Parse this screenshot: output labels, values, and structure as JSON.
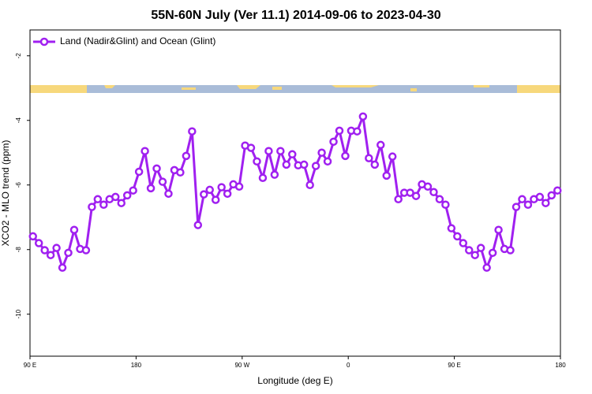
{
  "chart_data": {
    "type": "line",
    "title": "55N-60N July (Ver 11.1)   2014-09-06 to 2023-04-30",
    "x_label": "Longitude (deg E)",
    "y_label": "XCO2 - MLO trend (ppm)",
    "xlim": [
      90,
      540
    ],
    "xticks": [
      {
        "value": 90,
        "label": "90 E"
      },
      180,
      {
        "value": 270,
        "label": "90 W"
      },
      {
        "value": 360,
        "label": "0"
      },
      {
        "value": 450,
        "label": "90 E"
      },
      {
        "value": 540,
        "label": "180"
      }
    ],
    "ylim": [
      -11.3,
      -1.2
    ],
    "yticks": [
      -10,
      -8,
      -6,
      -4,
      -2
    ],
    "legend": "top-left",
    "x": [
      92.5,
      97.5,
      102.5,
      107.5,
      112.5,
      117.5,
      122.5,
      127.5,
      132.5,
      137.5,
      142.5,
      147.5,
      152.5,
      157.5,
      162.5,
      167.5,
      172.5,
      177.5,
      182.5,
      187.5,
      192.5,
      197.5,
      202.5,
      207.5,
      212.5,
      217.5,
      222.5,
      227.5,
      232.5,
      237.5,
      242.5,
      247.5,
      252.5,
      257.5,
      262.5,
      267.5,
      272.5,
      277.5,
      282.5,
      287.5,
      292.5,
      297.5,
      302.5,
      307.5,
      312.5,
      317.5,
      322.5,
      327.5,
      332.5,
      337.5,
      342.5,
      347.5,
      352.5,
      357.5,
      362.5,
      367.5,
      372.5,
      377.5,
      382.5,
      387.5,
      392.5,
      397.5,
      402.5,
      407.5,
      412.5,
      417.5,
      422.5,
      427.5,
      432.5,
      437.5,
      442.5,
      447.5,
      452.5,
      457.5,
      462.5,
      467.5,
      472.5,
      477.5,
      482.5,
      487.5,
      492.5,
      497.5,
      502.5,
      507.5,
      512.5,
      517.5,
      522.5,
      527.5,
      532.5,
      537.5
    ],
    "series": [
      {
        "name": "Land (Nadir&Glint) and Ocean (Glint)",
        "color": "#a020f0",
        "values": [
          -7.59,
          -7.8,
          -8.02,
          -8.17,
          -7.95,
          -8.56,
          -8.1,
          -7.39,
          -7.98,
          -8.02,
          -6.68,
          -6.44,
          -6.61,
          -6.44,
          -6.37,
          -6.56,
          -6.32,
          -6.17,
          -5.59,
          -4.95,
          -6.1,
          -5.49,
          -5.9,
          -6.27,
          -5.54,
          -5.61,
          -5.1,
          -4.34,
          -7.24,
          -6.29,
          -6.15,
          -6.46,
          -6.07,
          -6.27,
          -5.98,
          -6.05,
          -4.78,
          -4.85,
          -5.27,
          -5.78,
          -4.95,
          -5.68,
          -4.95,
          -5.37,
          -5.05,
          -5.39,
          -5.37,
          -6.0,
          -5.41,
          -5.0,
          -5.27,
          -4.66,
          -4.32,
          -5.1,
          -4.32,
          -4.34,
          -3.88,
          -5.17,
          -5.37,
          -4.76,
          -5.71,
          -5.12,
          -6.44,
          -6.24,
          -6.24,
          -6.34,
          -5.98,
          -6.05,
          -6.22,
          -6.44,
          -6.61,
          -7.34,
          -7.59,
          -7.8,
          -8.02,
          -8.17,
          -7.95,
          -8.56,
          -8.1,
          -7.39,
          -7.98,
          -8.02,
          -6.68,
          -6.44,
          -6.61,
          -6.44,
          -6.37,
          -6.56,
          -6.32,
          -6.17
        ]
      }
    ]
  }
}
